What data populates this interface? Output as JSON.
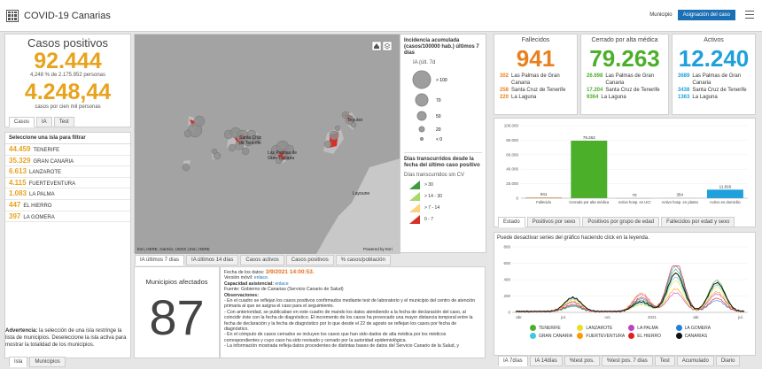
{
  "header": {
    "title": "COVID-19 Canarias",
    "municipio_label": "Municipio",
    "asignacion_btn": "Asignación del caso"
  },
  "casos": {
    "title": "Casos positivos",
    "total": "92.444",
    "pct_line": "4,248 % de 2.175.952 personas",
    "per_cien_mil": "4.248,44",
    "per_cien_mil_label": "casos por cien mil personas",
    "tabs": [
      "Casos",
      "IA",
      "Test"
    ]
  },
  "islas": {
    "heading": "Seleccione una isla para filtrar",
    "items": [
      {
        "value": "44.459",
        "name": "TENERIFE"
      },
      {
        "value": "35.329",
        "name": "GRAN CANARIA"
      },
      {
        "value": "6.613",
        "name": "LANZAROTE"
      },
      {
        "value": "4.115",
        "name": "FUERTEVENTURA"
      },
      {
        "value": "1.083",
        "name": "LA PALMA"
      },
      {
        "value": "447",
        "name": "EL HIERRO"
      },
      {
        "value": "397",
        "name": "LA GOMERA"
      }
    ],
    "advert_bold": "Advertencia:",
    "advert_text": " la selección de una isla restringe la lista de municipios. Deseleccione la isla activa para mostrar la totalidad de los municipios.",
    "bottom_tabs": [
      "Isla",
      "Municipios"
    ]
  },
  "map": {
    "labels": {
      "teguise": "Teguise",
      "santa_cruz": "Santa Cruz\nde Tenerife",
      "las_palmas": "Las Palmas de\nGran Canaria",
      "layoune": "Layoune"
    },
    "attribution": "Esri, HERE, Garmin, USGS | Esri, HERE",
    "powered": "Powered by Esri",
    "tabs": [
      "IA últimos 7 días",
      "IA últimos 14 días",
      "Casos activos",
      "Casos positivos",
      "% casos/población"
    ]
  },
  "legend": {
    "title1": "Incidencia acumulada (casos/100000 hab.) últimos 7 días",
    "sub1": "IA (últ. 7d",
    "sizes": [
      "> 100",
      "70",
      "50",
      "20",
      "< 0"
    ],
    "title2": "Días transcurridos desde la fecha del último caso positivo",
    "sub2": "Días transcurridos sin CV",
    "ranges": [
      {
        "label": "> 30",
        "color": "#3e9b3e"
      },
      {
        "label": "> 14 - 30",
        "color": "#a6d96a"
      },
      {
        "label": "> 7 - 14",
        "color": "#fdd27a"
      },
      {
        "label": "0 - 7",
        "color": "#d73027"
      }
    ]
  },
  "fallecidos": {
    "title": "Fallecidos",
    "total": "941",
    "color": "#e8801e",
    "rows": [
      {
        "v": "302",
        "t": "Las Palmas de Gran Canaria"
      },
      {
        "v": "258",
        "t": "Santa Cruz de Tenerife"
      },
      {
        "v": "220",
        "t": "La Laguna"
      }
    ]
  },
  "cerrado": {
    "title": "Cerrado por alta médica",
    "total": "79.263",
    "color": "#4caf2a",
    "rows": [
      {
        "v": "26.698",
        "t": "Las Palmas de Gran Canaria"
      },
      {
        "v": "17.204",
        "t": "Santa Cruz de Tenerife"
      },
      {
        "v": "9364",
        "t": "La Laguna"
      }
    ]
  },
  "activos": {
    "title": "Activos",
    "total": "12.240",
    "color": "#1ea0dc",
    "rows": [
      {
        "v": "3689",
        "t": "Las Palmas de Gran Canaria"
      },
      {
        "v": "3438",
        "t": "Santa Cruz de Tenerife"
      },
      {
        "v": "1363",
        "t": "La Laguna"
      }
    ]
  },
  "municipios": {
    "title": "Municipios afectados",
    "count": "87"
  },
  "detalle": {
    "fecha_label": "Fecha de los datos: ",
    "fecha": "3/9/2021 14:00:53.",
    "version": "Versión móvil: ",
    "version_link": "enlace.",
    "capacidad": "Capacidad asistencial: ",
    "capacidad_link": "enlace",
    "fuente": "Fuente: Gobierno de Canarias (Servicio Canario de Salud)",
    "obs": "Observaciones:",
    "p1": "- En el cuadro se reflejan los casos positivos confirmados mediante test de laboratorio y el municipio del centro de atención primaria al que se asigna el caso para el seguimiento.",
    "p2": "- Con anterioridad, se publicaban en este cuadro de mando los datos atendiendo a la fecha de declaración del caso, al coincidir éste con la fecha de diagnóstico. El incremento de los casos ha provocado una mayor distancia temporal entre la fecha de declaración y la fecha de diagnóstico por lo que desde el 22 de agosto se reflejan los casos por fecha de diagnóstico.",
    "p3": "- En el cómputo de casos cerrados se incluyen los casos que han sido dados de alta médica por los médicos correspondientes y cuyo caso ha sido revisado y cerrado por la autoridad epidemiológica.",
    "p4": "- La información mostrada refleja datos procedentes de distintas bases de datos del Servicio Canario de la Salud, y"
  },
  "chart_data": [
    {
      "type": "bar",
      "categories": [
        "Fallecido",
        "Cerrado por alta médica",
        "Activo hosp. en UCI",
        "Activo hosp. en planta",
        "Activo en domicilio"
      ],
      "values": [
        941,
        79263,
        70,
        354,
        11816
      ],
      "value_labels": [
        "941",
        "79.263",
        "70",
        "354",
        "11.816"
      ],
      "colors": [
        "#e8801e",
        "#4caf2a",
        "#9e9e9e",
        "#f5b5d0",
        "#1ea0dc"
      ],
      "ylim": [
        0,
        100000
      ],
      "yticks": [
        "100.000",
        "80.000",
        "60.000",
        "40.000",
        "20.000",
        "0"
      ],
      "tabs": [
        "Estado",
        "Positivos por sexo",
        "Positivos por grupo de edad",
        "Fallecidos por edad y sexo"
      ]
    },
    {
      "type": "line",
      "hint": "Puede desactivar series del gráfico haciendo click en la leyenda.",
      "ylim": [
        0,
        800
      ],
      "yticks": [
        "800",
        "600",
        "400",
        "200",
        "0"
      ],
      "xticks": [
        "abr.",
        "jul.",
        "oct.",
        "2021",
        "abr.",
        "jul."
      ],
      "series": [
        {
          "name": "TENERIFE",
          "color": "#4caf2a"
        },
        {
          "name": "LANZAROTE",
          "color": "#e8e020"
        },
        {
          "name": "LA PALMA",
          "color": "#c040c0"
        },
        {
          "name": "LA GOMERA",
          "color": "#2080e0"
        },
        {
          "name": "GRAN CANARIA",
          "color": "#40c8e0"
        },
        {
          "name": "FUERTEVENTURA",
          "color": "#ff9900"
        },
        {
          "name": "EL HIERRO",
          "color": "#e02020"
        },
        {
          "name": "CANARIAS",
          "color": "#111111"
        }
      ],
      "tabs": [
        "IA 7días",
        "IA 14días",
        "%test pos.",
        "%test pos. 7 días",
        "Test",
        "Acumulado",
        "Diario"
      ]
    }
  ]
}
